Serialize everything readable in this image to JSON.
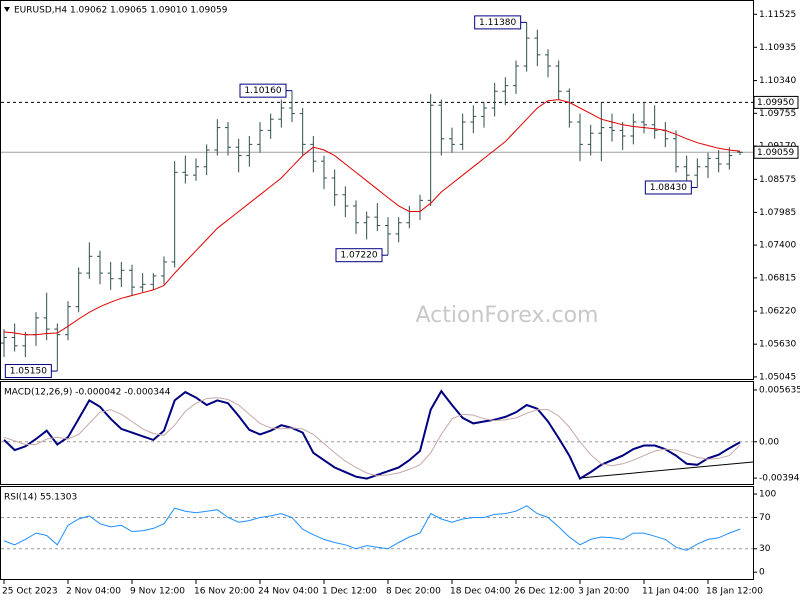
{
  "chart_data": [
    {
      "type": "ohlc",
      "title": "EURUSD,H4  1.09062 1.09065 1.09010 1.09059",
      "watermark": "ActionForex.com",
      "color": "#2f4f4f",
      "categories": [
        "25 Oct 2023",
        null,
        null,
        null,
        null,
        null,
        "2 Nov 04:00",
        null,
        null,
        null,
        null,
        null,
        "9 Nov 12:00",
        null,
        null,
        null,
        null,
        null,
        "16 Nov 20:00",
        null,
        null,
        null,
        null,
        null,
        "24 Nov 04:00",
        null,
        null,
        null,
        null,
        null,
        "1 Dec 12:00",
        null,
        null,
        null,
        null,
        null,
        "8 Dec 20:00",
        null,
        null,
        null,
        null,
        null,
        "18 Dec 04:00",
        null,
        null,
        null,
        null,
        null,
        "26 Dec 12:00",
        null,
        null,
        null,
        null,
        null,
        "3 Jan 20:00",
        null,
        null,
        null,
        null,
        null,
        "11 Jan 04:00",
        null,
        null,
        null,
        null,
        null,
        "18 Jan 12:00",
        null,
        null,
        null
      ],
      "open": [
        1.0565,
        1.0575,
        1.056,
        1.058,
        1.061,
        1.059,
        1.058,
        1.063,
        1.069,
        1.072,
        1.069,
        1.068,
        1.0695,
        1.0665,
        1.067,
        1.0685,
        1.071,
        1.087,
        1.0865,
        1.088,
        1.091,
        1.095,
        1.0915,
        1.09,
        1.092,
        1.0945,
        1.0965,
        1.0985,
        1.0975,
        1.092,
        1.089,
        1.086,
        1.083,
        1.081,
        1.078,
        1.079,
        1.0775,
        1.076,
        1.078,
        1.08,
        1.082,
        1.099,
        1.093,
        1.092,
        1.096,
        1.097,
        1.0985,
        1.1015,
        1.1025,
        1.106,
        1.111,
        1.108,
        1.106,
        1.1015,
        1.096,
        1.092,
        1.094,
        1.095,
        1.0945,
        1.0935,
        1.096,
        1.0955,
        1.0945,
        1.093,
        1.088,
        1.0865,
        1.088,
        1.0895,
        1.0885,
        1.09062
      ],
      "high": [
        1.059,
        1.06,
        1.0585,
        1.062,
        1.0655,
        1.06,
        1.064,
        1.07,
        1.0745,
        1.073,
        1.071,
        1.071,
        1.0705,
        1.069,
        1.069,
        1.072,
        1.089,
        1.09,
        1.0895,
        1.092,
        1.0965,
        1.096,
        1.093,
        1.0935,
        1.096,
        1.0975,
        1.1,
        1.1016,
        1.0985,
        1.0935,
        1.09,
        1.0875,
        1.0845,
        1.082,
        1.08,
        1.0815,
        1.079,
        1.079,
        1.081,
        1.083,
        1.101,
        1.1,
        1.095,
        1.0975,
        1.099,
        1.0995,
        1.103,
        1.104,
        1.107,
        1.1138,
        1.1125,
        1.109,
        1.107,
        1.102,
        1.0975,
        1.0955,
        1.0995,
        1.0975,
        1.096,
        1.0975,
        1.0995,
        1.099,
        1.096,
        1.0945,
        1.09,
        1.0895,
        1.0905,
        1.091,
        1.0915,
        1.09065
      ],
      "low": [
        1.054,
        1.055,
        1.054,
        1.056,
        1.057,
        1.0515,
        1.057,
        1.062,
        1.068,
        1.067,
        1.066,
        1.0665,
        1.065,
        1.0655,
        1.066,
        1.067,
        1.07,
        1.085,
        1.0855,
        1.0865,
        1.09,
        1.09,
        1.087,
        1.088,
        1.0905,
        1.093,
        1.095,
        1.096,
        1.09,
        1.087,
        1.084,
        1.081,
        1.079,
        1.076,
        1.075,
        1.0765,
        1.0722,
        1.0745,
        1.077,
        1.0785,
        1.081,
        1.09,
        1.0905,
        1.091,
        1.094,
        1.095,
        1.097,
        1.099,
        1.101,
        1.105,
        1.106,
        1.104,
        1.1,
        1.095,
        1.089,
        1.09,
        1.089,
        1.0925,
        1.091,
        1.092,
        1.094,
        1.093,
        1.0915,
        1.087,
        1.085,
        1.0843,
        1.086,
        1.087,
        1.0875,
        1.0901
      ],
      "close": [
        1.0575,
        1.056,
        1.058,
        1.061,
        1.059,
        1.058,
        1.063,
        1.069,
        1.072,
        1.069,
        1.068,
        1.0695,
        1.0665,
        1.067,
        1.0685,
        1.071,
        1.087,
        1.0865,
        1.088,
        1.091,
        1.095,
        1.0915,
        1.09,
        1.092,
        1.0945,
        1.0965,
        1.0985,
        1.0975,
        1.092,
        1.089,
        1.086,
        1.083,
        1.081,
        1.078,
        1.079,
        1.0775,
        1.076,
        1.078,
        1.08,
        1.082,
        1.099,
        1.093,
        1.092,
        1.096,
        1.097,
        1.0985,
        1.1015,
        1.1025,
        1.106,
        1.111,
        1.108,
        1.106,
        1.1015,
        1.096,
        1.092,
        1.094,
        1.095,
        1.0945,
        1.0935,
        1.096,
        1.0955,
        1.0945,
        1.093,
        1.088,
        1.0865,
        1.088,
        1.0895,
        1.0885,
        1.09,
        1.09059
      ],
      "series": [
        {
          "color": "#e00000",
          "width": 1,
          "values": [
            1.0585,
            1.0583,
            1.058,
            1.058,
            1.0582,
            1.0583,
            1.0595,
            1.0608,
            1.062,
            1.063,
            1.0638,
            1.0645,
            1.065,
            1.0655,
            1.066,
            1.0668,
            1.069,
            1.071,
            1.073,
            1.075,
            1.077,
            1.0785,
            1.08,
            1.0815,
            1.083,
            1.0845,
            1.086,
            1.088,
            1.09,
            1.0915,
            1.091,
            1.09,
            1.0885,
            1.087,
            1.0855,
            1.084,
            1.0825,
            1.081,
            1.08,
            1.08,
            1.0815,
            1.0835,
            1.085,
            1.0865,
            1.088,
            1.0895,
            1.091,
            1.0925,
            1.0945,
            1.0965,
            1.0985,
            1.0998,
            1.1,
            1.0995,
            1.0985,
            1.0975,
            1.0965,
            1.096,
            1.0955,
            1.0952,
            1.095,
            1.0948,
            1.0945,
            1.0938,
            1.093,
            1.0923,
            1.0918,
            1.0913,
            1.091,
            1.0908
          ]
        }
      ],
      "levels": [
        {
          "value": 1.0995,
          "label": "1.09950",
          "style": "dashed"
        },
        {
          "value": 1.09059,
          "label": "1.09059",
          "style": "solid"
        }
      ],
      "annotations": [
        {
          "value": 1.1138,
          "label": "1.11380"
        },
        {
          "value": 1.1016,
          "label": "1.10160"
        },
        {
          "value": 1.0722,
          "label": "1.07220"
        },
        {
          "value": 1.0843,
          "label": "1.08430"
        },
        {
          "value": 1.0515,
          "label": "1.05150"
        }
      ],
      "ylim": [
        1.0499,
        1.1178
      ],
      "yticks": [
        1.11525,
        1.10935,
        {
          "value": 1.1034,
          "label": "1.10340"
        },
        1.09755,
        {
          "value": 1.0917,
          "label": "1.09170"
        },
        1.08575,
        1.07985,
        {
          "value": 1.074,
          "label": "1.07400"
        },
        1.06815,
        {
          "value": 1.0622,
          "label": "1.06220"
        },
        {
          "value": 1.0563,
          "label": "1.05630"
        },
        1.05045
      ]
    },
    {
      "type": "line",
      "title": "MACD(12,26,9) -0.000042 -0.000344",
      "series": [
        {
          "color": "#000080",
          "width": 2,
          "values": [
            0.0002,
            -0.0009,
            -0.0005,
            0.0003,
            0.0012,
            -0.0003,
            0.0005,
            0.0025,
            0.0045,
            0.0038,
            0.0025,
            0.0014,
            0.001,
            0.0006,
            0.0002,
            0.0012,
            0.0045,
            0.0054,
            0.0048,
            0.004,
            0.0045,
            0.0042,
            0.0028,
            0.0013,
            0.0008,
            0.0012,
            0.0018,
            0.0015,
            0.001,
            -0.0012,
            -0.002,
            -0.0028,
            -0.0033,
            -0.0038,
            -0.004,
            -0.0036,
            -0.0032,
            -0.0028,
            -0.002,
            -0.001,
            0.0035,
            0.0055,
            0.004,
            0.0026,
            0.002,
            0.0022,
            0.0024,
            0.0027,
            0.0032,
            0.004,
            0.0036,
            0.0022,
            0.0004,
            -0.0015,
            -0.004,
            -0.0033,
            -0.0025,
            -0.002,
            -0.0015,
            -0.0008,
            -0.0004,
            -0.0004,
            -0.0008,
            -0.0015,
            -0.0024,
            -0.0025,
            -0.0018,
            -0.0014,
            -0.0007,
            -4.2e-05
          ]
        },
        {
          "color": "#c8a8a8",
          "width": 1,
          "values": [
            0.0005,
            0.0001,
            -0.0003,
            -0.0003,
            0.0003,
            0.0005,
            0.0003,
            0.0008,
            0.002,
            0.0032,
            0.0035,
            0.003,
            0.0022,
            0.0014,
            0.0009,
            0.0007,
            0.0018,
            0.0033,
            0.0042,
            0.0047,
            0.0048,
            0.0046,
            0.004,
            0.003,
            0.002,
            0.0015,
            0.0014,
            0.0015,
            0.0014,
            0.0008,
            -0.0002,
            -0.0012,
            -0.0021,
            -0.0028,
            -0.0034,
            -0.0037,
            -0.0036,
            -0.0034,
            -0.003,
            -0.0025,
            -0.0012,
            0.0008,
            0.0025,
            0.003,
            0.0029,
            0.0025,
            0.0023,
            0.0024,
            0.0026,
            0.0031,
            0.0035,
            0.0035,
            0.0028,
            0.0016,
            0.0,
            -0.0014,
            -0.0024,
            -0.0026,
            -0.0024,
            -0.002,
            -0.0015,
            -0.001,
            -0.0008,
            -0.0009,
            -0.0013,
            -0.0017,
            -0.0019,
            -0.0018,
            -0.0015,
            -0.000344
          ]
        }
      ],
      "levels": [
        0
      ],
      "ylim": [
        -0.0047,
        0.0065
      ],
      "yticks": [
        0.005635,
        {
          "value": 0,
          "label": "0.00"
        },
        -0.003949
      ]
    },
    {
      "type": "line",
      "title": "RSI(14) 55.1303",
      "series": [
        {
          "color": "#1e90ff",
          "width": 1,
          "values": [
            40,
            35,
            42,
            50,
            47,
            35,
            60,
            68,
            72,
            62,
            58,
            60,
            52,
            53,
            56,
            62,
            82,
            78,
            76,
            78,
            80,
            70,
            64,
            66,
            70,
            72,
            75,
            70,
            55,
            48,
            42,
            38,
            35,
            30,
            34,
            32,
            30,
            38,
            45,
            50,
            75,
            68,
            64,
            68,
            70,
            70,
            74,
            75,
            78,
            85,
            75,
            70,
            58,
            45,
            35,
            42,
            45,
            44,
            42,
            50,
            50,
            46,
            42,
            32,
            28,
            36,
            42,
            44,
            50,
            55.1303
          ]
        }
      ],
      "levels": [
        70,
        30
      ],
      "ylim": [
        -10,
        109
      ],
      "yticks": [
        100,
        70,
        30,
        0
      ]
    }
  ]
}
